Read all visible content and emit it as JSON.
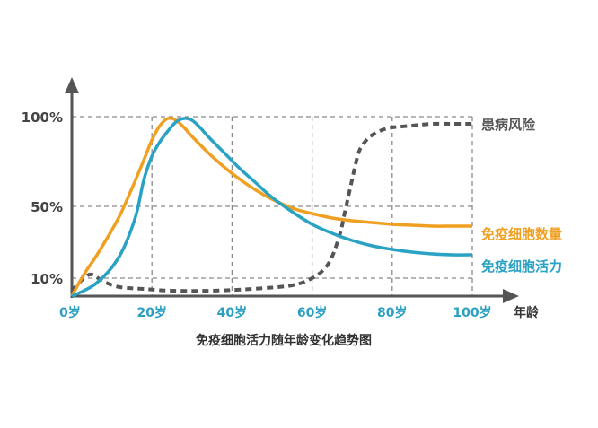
{
  "chart_data": {
    "type": "line",
    "title": "",
    "caption": "免疫细胞活力随年龄变化趋势图",
    "xlabel": "年龄",
    "ylabel": "",
    "x_ticks": [
      "0岁",
      "20岁",
      "40岁",
      "60岁",
      "80岁",
      "100岁"
    ],
    "x_tick_values": [
      0,
      20,
      40,
      60,
      80,
      100
    ],
    "y_ticks": [
      "100%",
      "50%",
      "10%"
    ],
    "y_tick_values": [
      100,
      50,
      10
    ],
    "xlim": [
      0,
      100
    ],
    "ylim": [
      0,
      100
    ],
    "grid": true,
    "grid_style": "dashed",
    "legend": "right",
    "series": [
      {
        "name": "患病风险",
        "color": "#555555",
        "style": "dashed",
        "x": [
          0,
          3,
          5,
          8,
          12,
          18,
          25,
          35,
          45,
          55,
          60,
          63,
          65,
          67,
          68,
          69,
          70,
          71,
          72,
          74,
          76,
          78,
          80,
          85,
          90,
          95,
          100
        ],
        "y": [
          3,
          10,
          12,
          8,
          5,
          4,
          3,
          3,
          4,
          6,
          10,
          15,
          22,
          35,
          45,
          55,
          65,
          75,
          82,
          88,
          91,
          93,
          94,
          95,
          96,
          96,
          96
        ]
      },
      {
        "name": "免疫细胞数量",
        "color": "#f0a020",
        "style": "solid",
        "x": [
          0,
          3,
          6,
          9,
          12,
          15,
          18,
          20,
          22,
          24,
          26,
          28,
          30,
          34,
          38,
          42,
          46,
          50,
          55,
          60,
          65,
          70,
          75,
          80,
          85,
          90,
          95,
          100
        ],
        "y": [
          0,
          12,
          22,
          33,
          45,
          60,
          76,
          87,
          95,
          99,
          98,
          94,
          89,
          80,
          72,
          65,
          59,
          54,
          49,
          46,
          43.5,
          42,
          41,
          40,
          39.5,
          39,
          39,
          39
        ]
      },
      {
        "name": "免疫细胞活力",
        "color": "#2aa2c4",
        "style": "solid",
        "x": [
          0,
          3,
          6,
          10,
          13,
          16,
          18,
          20,
          22,
          24,
          26,
          28,
          30,
          32,
          34,
          38,
          42,
          46,
          50,
          55,
          60,
          65,
          70,
          75,
          80,
          85,
          90,
          95,
          100
        ],
        "y": [
          0,
          3,
          7,
          16,
          27,
          45,
          65,
          78,
          86,
          92,
          97,
          99,
          98,
          94,
          89,
          80,
          71,
          63,
          55,
          47,
          40,
          35,
          31,
          28,
          26,
          24.5,
          23.5,
          23,
          23
        ]
      }
    ]
  }
}
